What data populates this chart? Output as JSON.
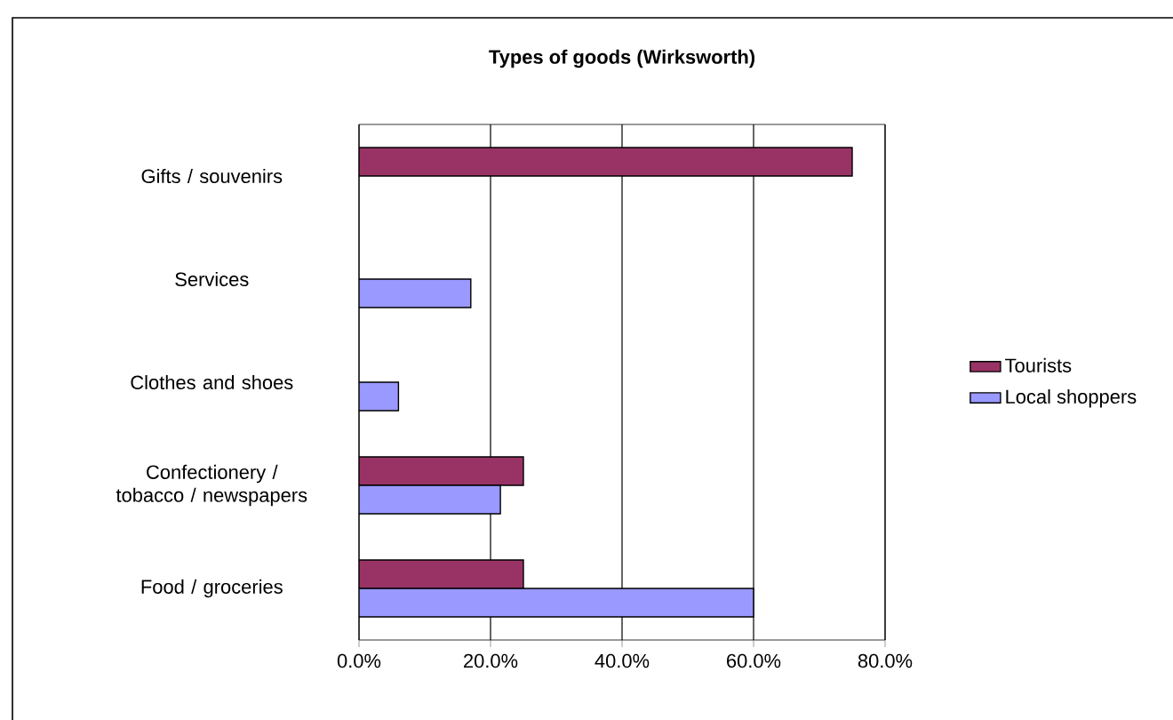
{
  "chart_data": {
    "type": "bar",
    "orientation": "horizontal",
    "title": "Types of goods (Wirksworth)",
    "categories": [
      "Gifts / souvenirs",
      "Services",
      "Clothes and shoes",
      "Confectionery / tobacco / newspapers",
      "Food / groceries"
    ],
    "series": [
      {
        "name": "Tourists",
        "color": "#993366",
        "values": [
          75,
          null,
          null,
          25,
          25
        ]
      },
      {
        "name": "Local shoppers",
        "color": "#9999ff",
        "values": [
          null,
          17,
          6,
          21.5,
          60
        ]
      }
    ],
    "xlim": [
      0,
      80
    ],
    "xticks": [
      {
        "value": 0,
        "label": "0.0%"
      },
      {
        "value": 20,
        "label": "20.0%"
      },
      {
        "value": 40,
        "label": "40.0%"
      },
      {
        "value": 60,
        "label": "60.0%"
      },
      {
        "value": 80,
        "label": "80.0%"
      }
    ],
    "grid": "x",
    "legend": "right"
  }
}
